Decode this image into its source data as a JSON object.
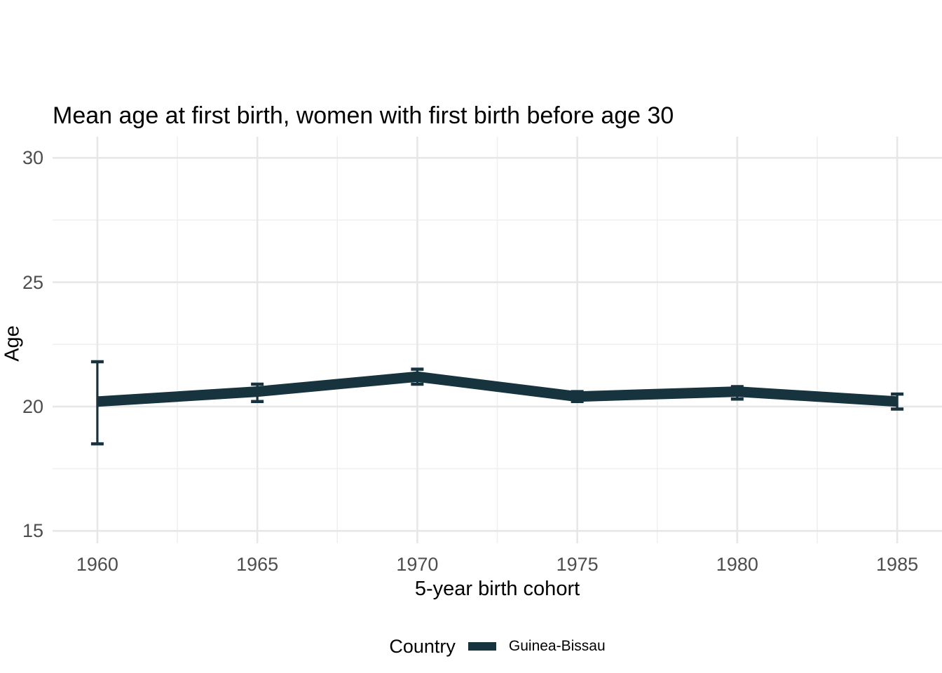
{
  "chart_data": {
    "type": "line",
    "title": "Mean age at first birth, women with first birth before age 30",
    "xlabel": "5-year birth cohort",
    "ylabel": "Age",
    "x": [
      1960,
      1965,
      1970,
      1975,
      1980,
      1985
    ],
    "series": [
      {
        "name": "Guinea-Bissau",
        "values": [
          20.2,
          20.6,
          21.2,
          20.4,
          20.6,
          20.2
        ],
        "ci_low": [
          18.5,
          20.2,
          20.9,
          20.2,
          20.3,
          19.9
        ],
        "ci_high": [
          21.8,
          20.9,
          21.5,
          20.6,
          20.8,
          20.5
        ]
      }
    ],
    "xlim": [
      1958.6,
      1986.4
    ],
    "ylim": [
      14.5,
      30.85
    ],
    "xticks": [
      1960,
      1965,
      1970,
      1975,
      1980,
      1985
    ],
    "yticks": [
      15,
      20,
      25,
      30
    ],
    "x_minor": [
      1962.5,
      1967.5,
      1972.5,
      1977.5,
      1982.5
    ],
    "y_minor": [
      17.5,
      22.5,
      27.5
    ],
    "grid": true,
    "error_bars": true,
    "legend": {
      "title": "Country",
      "position": "bottom"
    },
    "colors": {
      "line": "#16333E",
      "grid_major": "#e7e7e7",
      "grid_minor": "#f0f0f0",
      "tick_label": "#4d4d4d",
      "text": "#000000",
      "background": "#ffffff"
    }
  }
}
